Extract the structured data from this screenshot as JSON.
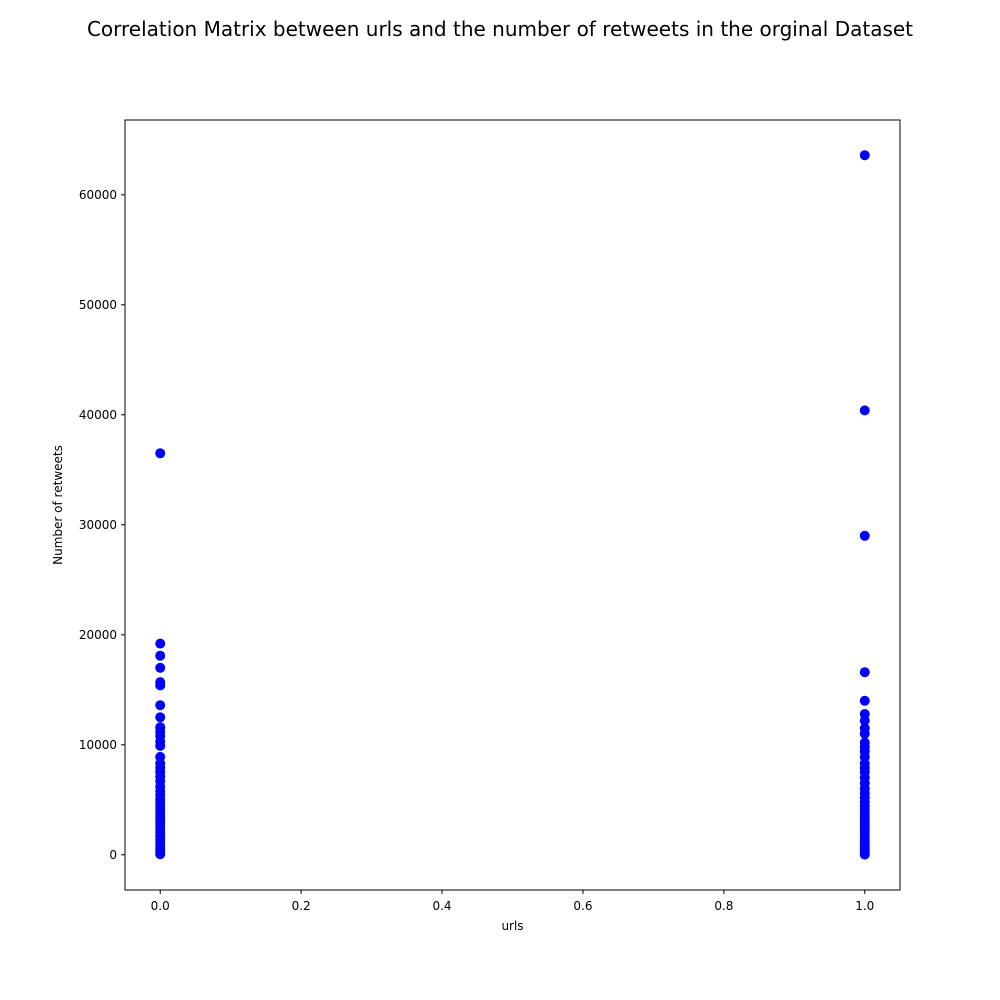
{
  "chart_data": {
    "type": "scatter",
    "title": "Correlation Matrix between urls and the number of retweets in the orginal Dataset",
    "xlabel": "urls",
    "ylabel": "Number of retweets",
    "xlim": [
      -0.05,
      1.05
    ],
    "ylim": [
      -3200,
      66800
    ],
    "x_ticks": [
      0.0,
      0.2,
      0.4,
      0.6,
      0.8,
      1.0
    ],
    "x_tick_labels": [
      "0.0",
      "0.2",
      "0.4",
      "0.6",
      "0.8",
      "1.0"
    ],
    "y_ticks": [
      0,
      10000,
      20000,
      30000,
      40000,
      50000,
      60000
    ],
    "y_tick_labels": [
      "0",
      "10000",
      "20000",
      "30000",
      "40000",
      "50000",
      "60000"
    ],
    "grid": false,
    "marker_color": "#0000ff",
    "series": [
      {
        "points": [
          {
            "x": 0,
            "y": 36500
          },
          {
            "x": 0,
            "y": 19200
          },
          {
            "x": 0,
            "y": 18100
          },
          {
            "x": 0,
            "y": 17000
          },
          {
            "x": 0,
            "y": 15700
          },
          {
            "x": 0,
            "y": 15400
          },
          {
            "x": 0,
            "y": 13600
          },
          {
            "x": 0,
            "y": 12500
          },
          {
            "x": 0,
            "y": 11600
          },
          {
            "x": 0,
            "y": 11200
          },
          {
            "x": 0,
            "y": 10800
          },
          {
            "x": 0,
            "y": 10300
          },
          {
            "x": 0,
            "y": 9900
          },
          {
            "x": 0,
            "y": 8900
          },
          {
            "x": 0,
            "y": 8300
          },
          {
            "x": 0,
            "y": 7900
          },
          {
            "x": 0,
            "y": 7500
          },
          {
            "x": 0,
            "y": 7100
          },
          {
            "x": 0,
            "y": 6700
          },
          {
            "x": 0,
            "y": 6200
          },
          {
            "x": 0,
            "y": 5800
          },
          {
            "x": 0,
            "y": 5400
          },
          {
            "x": 0,
            "y": 5000
          },
          {
            "x": 0,
            "y": 4700
          },
          {
            "x": 0,
            "y": 4400
          },
          {
            "x": 0,
            "y": 4100
          },
          {
            "x": 0,
            "y": 3800
          },
          {
            "x": 0,
            "y": 3500
          },
          {
            "x": 0,
            "y": 3200
          },
          {
            "x": 0,
            "y": 2900
          },
          {
            "x": 0,
            "y": 2600
          },
          {
            "x": 0,
            "y": 2300
          },
          {
            "x": 0,
            "y": 2000
          },
          {
            "x": 0,
            "y": 1700
          },
          {
            "x": 0,
            "y": 1400
          },
          {
            "x": 0,
            "y": 1100
          },
          {
            "x": 0,
            "y": 800
          },
          {
            "x": 0,
            "y": 500
          },
          {
            "x": 0,
            "y": 250
          },
          {
            "x": 0,
            "y": 50
          },
          {
            "x": 1,
            "y": 63600
          },
          {
            "x": 1,
            "y": 40400
          },
          {
            "x": 1,
            "y": 29000
          },
          {
            "x": 1,
            "y": 16600
          },
          {
            "x": 1,
            "y": 14000
          },
          {
            "x": 1,
            "y": 12800
          },
          {
            "x": 1,
            "y": 12200
          },
          {
            "x": 1,
            "y": 11500
          },
          {
            "x": 1,
            "y": 11000
          },
          {
            "x": 1,
            "y": 10200
          },
          {
            "x": 1,
            "y": 9800
          },
          {
            "x": 1,
            "y": 9400
          },
          {
            "x": 1,
            "y": 8900
          },
          {
            "x": 1,
            "y": 8300
          },
          {
            "x": 1,
            "y": 7900
          },
          {
            "x": 1,
            "y": 7500
          },
          {
            "x": 1,
            "y": 7000
          },
          {
            "x": 1,
            "y": 6500
          },
          {
            "x": 1,
            "y": 6000
          },
          {
            "x": 1,
            "y": 5600
          },
          {
            "x": 1,
            "y": 5200
          },
          {
            "x": 1,
            "y": 4800
          },
          {
            "x": 1,
            "y": 4400
          },
          {
            "x": 1,
            "y": 4000
          },
          {
            "x": 1,
            "y": 3700
          },
          {
            "x": 1,
            "y": 3400
          },
          {
            "x": 1,
            "y": 3100
          },
          {
            "x": 1,
            "y": 2800
          },
          {
            "x": 1,
            "y": 2500
          },
          {
            "x": 1,
            "y": 2200
          },
          {
            "x": 1,
            "y": 1900
          },
          {
            "x": 1,
            "y": 1600
          },
          {
            "x": 1,
            "y": 1300
          },
          {
            "x": 1,
            "y": 1000
          },
          {
            "x": 1,
            "y": 700
          },
          {
            "x": 1,
            "y": 450
          },
          {
            "x": 1,
            "y": 250
          },
          {
            "x": 1,
            "y": 100
          },
          {
            "x": 1,
            "y": 20
          }
        ]
      }
    ]
  }
}
